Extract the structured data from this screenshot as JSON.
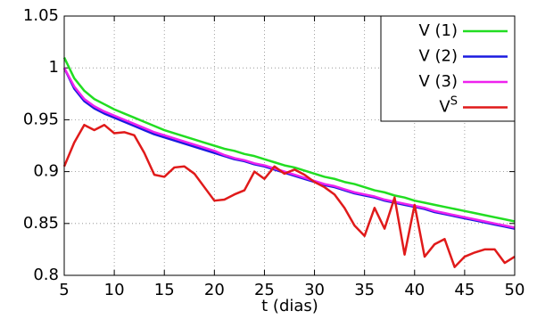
{
  "chart_data": {
    "type": "line",
    "xlabel": "t (dias)",
    "x": [
      5,
      6,
      7,
      8,
      9,
      10,
      11,
      12,
      13,
      14,
      15,
      16,
      17,
      18,
      19,
      20,
      21,
      22,
      23,
      24,
      25,
      26,
      27,
      28,
      29,
      30,
      31,
      32,
      33,
      34,
      35,
      36,
      37,
      38,
      39,
      40,
      41,
      42,
      43,
      44,
      45,
      46,
      47,
      48,
      49,
      50
    ],
    "series": [
      {
        "name": "V (1)",
        "color": "#22dd22",
        "values": [
          1.01,
          0.99,
          0.978,
          0.97,
          0.965,
          0.96,
          0.956,
          0.952,
          0.948,
          0.944,
          0.94,
          0.937,
          0.934,
          0.931,
          0.928,
          0.925,
          0.922,
          0.92,
          0.917,
          0.915,
          0.912,
          0.909,
          0.906,
          0.904,
          0.901,
          0.898,
          0.895,
          0.893,
          0.89,
          0.888,
          0.885,
          0.882,
          0.88,
          0.877,
          0.875,
          0.872,
          0.87,
          0.868,
          0.866,
          0.864,
          0.862,
          0.86,
          0.858,
          0.856,
          0.854,
          0.852
        ]
      },
      {
        "name": "V (2)",
        "color": "#1a1ae0",
        "values": [
          1.0,
          0.98,
          0.968,
          0.961,
          0.956,
          0.952,
          0.948,
          0.944,
          0.94,
          0.936,
          0.933,
          0.93,
          0.927,
          0.924,
          0.921,
          0.918,
          0.915,
          0.912,
          0.91,
          0.907,
          0.905,
          0.902,
          0.899,
          0.896,
          0.893,
          0.89,
          0.887,
          0.885,
          0.882,
          0.879,
          0.877,
          0.875,
          0.872,
          0.87,
          0.868,
          0.866,
          0.864,
          0.861,
          0.859,
          0.857,
          0.855,
          0.853,
          0.851,
          0.849,
          0.847,
          0.845
        ]
      },
      {
        "name": "V (3)",
        "color": "#ee22ee",
        "values": [
          1.0,
          0.982,
          0.97,
          0.963,
          0.958,
          0.954,
          0.95,
          0.946,
          0.942,
          0.938,
          0.935,
          0.932,
          0.929,
          0.926,
          0.923,
          0.92,
          0.916,
          0.913,
          0.911,
          0.908,
          0.906,
          0.903,
          0.9,
          0.897,
          0.894,
          0.891,
          0.888,
          0.886,
          0.883,
          0.88,
          0.878,
          0.876,
          0.873,
          0.871,
          0.869,
          0.867,
          0.865,
          0.862,
          0.86,
          0.858,
          0.856,
          0.854,
          0.852,
          0.85,
          0.848,
          0.846
        ]
      },
      {
        "name": "V",
        "superscript": "S",
        "color": "#e01a1a",
        "values": [
          0.905,
          0.928,
          0.945,
          0.94,
          0.945,
          0.937,
          0.938,
          0.935,
          0.918,
          0.897,
          0.895,
          0.904,
          0.905,
          0.898,
          0.885,
          0.872,
          0.873,
          0.878,
          0.882,
          0.9,
          0.893,
          0.905,
          0.898,
          0.902,
          0.897,
          0.89,
          0.885,
          0.878,
          0.865,
          0.848,
          0.838,
          0.865,
          0.845,
          0.875,
          0.82,
          0.868,
          0.818,
          0.83,
          0.835,
          0.808,
          0.818,
          0.822,
          0.825,
          0.825,
          0.812,
          0.818
        ]
      }
    ],
    "xlim": [
      5,
      50
    ],
    "xticks": [
      5,
      10,
      15,
      20,
      25,
      30,
      35,
      40,
      45,
      50
    ],
    "ylim": [
      0.8,
      1.05
    ],
    "yticks": [
      0.8,
      0.85,
      0.9,
      0.95,
      1,
      1.05
    ],
    "grid": true,
    "legend": "upper right"
  }
}
